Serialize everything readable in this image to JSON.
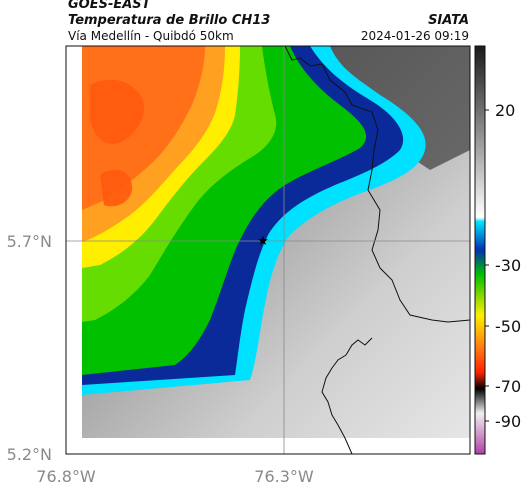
{
  "header": {
    "title_line1": "GOES-EAST",
    "title_line2": "Temperatura de Brillo CH13",
    "brand": "SIATA",
    "subtitle": "Vía Medellín - Quibdó 50km",
    "timestamp": "2024-01-26 09:19"
  },
  "map": {
    "lat_labels": [
      "5.7°N",
      "5.2°N"
    ],
    "lon_labels": [
      "76.8°W",
      "76.3°W"
    ],
    "gridlines": true,
    "marker": "star-icon"
  },
  "colorbar": {
    "tick_labels": [
      "20",
      "-30",
      "-50",
      "-70",
      "-90"
    ],
    "palette": [
      "#c050b0",
      "#ffffff",
      "#000000",
      "#ff2200",
      "#ffee00",
      "#00c000",
      "#00e5ff",
      "#4a4a4a"
    ]
  }
}
